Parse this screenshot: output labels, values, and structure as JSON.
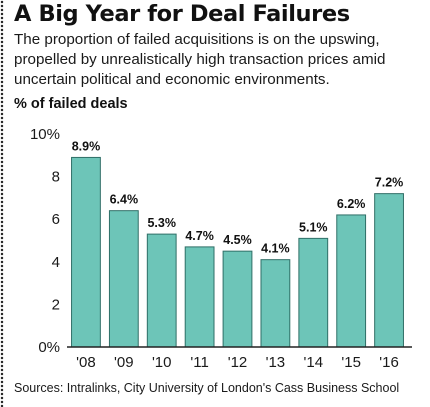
{
  "header": {
    "title": "A Big Year for Deal Failures",
    "subtitle": "The proportion of failed acquisitions is on the upswing, propelled by unrealistically high transaction prices amid uncertain political and economic environments."
  },
  "footer": {
    "source": "Sources: Intralinks, City University of London's Cass Business School"
  },
  "colors": {
    "bar_fill": "#6dc5b8",
    "bar_stroke": "#2f6f67",
    "axis": "#222222"
  },
  "chart_data": {
    "type": "bar",
    "title": "A Big Year for Deal Failures",
    "ylabel": "% of failed deals",
    "xlabel": "",
    "categories": [
      "'08",
      "'09",
      "'10",
      "'11",
      "'12",
      "'13",
      "'14",
      "'15",
      "'16"
    ],
    "values": [
      8.9,
      6.4,
      5.3,
      4.7,
      4.5,
      4.1,
      5.1,
      6.2,
      7.2
    ],
    "data_labels": [
      "8.9%",
      "6.4%",
      "5.3%",
      "4.7%",
      "4.5%",
      "4.1%",
      "5.1%",
      "6.2%",
      "7.2%"
    ],
    "ylim": [
      0,
      10
    ],
    "yticks": [
      0,
      2,
      4,
      6,
      8,
      10
    ],
    "ytick_labels": [
      "0%",
      "2",
      "4",
      "6",
      "8",
      "10%"
    ],
    "grid": false,
    "legend": "none"
  }
}
